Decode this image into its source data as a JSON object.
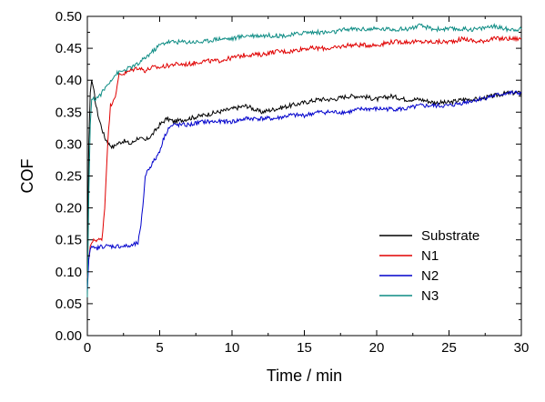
{
  "chart_data": {
    "type": "line",
    "xlabel": "Time / min",
    "ylabel": "COF",
    "xlim": [
      0,
      30
    ],
    "ylim": [
      0,
      0.5
    ],
    "x_ticks": [
      0,
      5,
      10,
      15,
      20,
      25,
      30
    ],
    "y_ticks": [
      0.0,
      0.05,
      0.1,
      0.15,
      0.2,
      0.25,
      0.3,
      0.35,
      0.4,
      0.45,
      0.5
    ],
    "x_tick_labels": [
      "0",
      "5",
      "10",
      "15",
      "20",
      "25",
      "30"
    ],
    "y_tick_labels": [
      "0.00",
      "0.05",
      "0.10",
      "0.15",
      "0.20",
      "0.25",
      "0.30",
      "0.35",
      "0.40",
      "0.45",
      "0.50"
    ],
    "grid": false,
    "legend_position": "lower-right",
    "series": [
      {
        "name": "Substrate",
        "color": "#000000",
        "x": [
          0,
          0.1,
          0.2,
          0.3,
          0.4,
          0.5,
          0.6,
          0.8,
          1.0,
          1.2,
          1.5,
          1.8,
          2.0,
          2.5,
          3.0,
          3.5,
          4.0,
          4.5,
          5.0,
          5.5,
          6.0,
          7.0,
          8.0,
          9.0,
          10.0,
          11.0,
          12.0,
          13.0,
          14.0,
          15.0,
          16.0,
          17.0,
          18.0,
          19.0,
          20.0,
          21.0,
          22.0,
          23.0,
          24.0,
          25.0,
          26.0,
          27.0,
          28.0,
          29.0,
          30.0
        ],
        "y": [
          0.1,
          0.3,
          0.38,
          0.4,
          0.39,
          0.375,
          0.36,
          0.34,
          0.325,
          0.31,
          0.3,
          0.295,
          0.3,
          0.305,
          0.3,
          0.31,
          0.305,
          0.315,
          0.33,
          0.34,
          0.335,
          0.34,
          0.345,
          0.35,
          0.355,
          0.36,
          0.35,
          0.355,
          0.36,
          0.365,
          0.37,
          0.37,
          0.375,
          0.375,
          0.37,
          0.375,
          0.37,
          0.37,
          0.365,
          0.365,
          0.37,
          0.37,
          0.375,
          0.38,
          0.38
        ]
      },
      {
        "name": "N1",
        "color": "#e00000",
        "x": [
          0,
          0.1,
          0.2,
          0.3,
          0.5,
          0.8,
          1.0,
          1.2,
          1.4,
          1.6,
          1.8,
          2.0,
          2.2,
          2.5,
          3.0,
          3.5,
          4.0,
          4.5,
          5.0,
          6.0,
          7.0,
          8.0,
          9.0,
          10.0,
          11.0,
          12.0,
          13.0,
          14.0,
          15.0,
          16.0,
          17.0,
          18.0,
          19.0,
          20.0,
          21.0,
          22.0,
          23.0,
          24.0,
          25.0,
          26.0,
          27.0,
          28.0,
          29.0,
          30.0
        ],
        "y": [
          0.09,
          0.12,
          0.14,
          0.145,
          0.15,
          0.15,
          0.15,
          0.2,
          0.3,
          0.36,
          0.37,
          0.38,
          0.41,
          0.41,
          0.415,
          0.42,
          0.415,
          0.42,
          0.42,
          0.425,
          0.425,
          0.43,
          0.43,
          0.435,
          0.44,
          0.44,
          0.445,
          0.445,
          0.45,
          0.45,
          0.45,
          0.455,
          0.455,
          0.455,
          0.46,
          0.46,
          0.46,
          0.46,
          0.46,
          0.465,
          0.46,
          0.465,
          0.465,
          0.465
        ]
      },
      {
        "name": "N2",
        "color": "#0000cc",
        "x": [
          0,
          0.1,
          0.2,
          0.3,
          0.5,
          1.0,
          1.5,
          2.0,
          2.5,
          3.0,
          3.5,
          3.7,
          3.9,
          4.0,
          4.2,
          4.5,
          4.8,
          5.0,
          5.3,
          5.6,
          6.0,
          7.0,
          8.0,
          9.0,
          10.0,
          11.0,
          12.0,
          13.0,
          14.0,
          15.0,
          16.0,
          17.0,
          18.0,
          19.0,
          20.0,
          21.0,
          22.0,
          23.0,
          24.0,
          25.0,
          26.0,
          27.0,
          28.0,
          29.0,
          30.0
        ],
        "y": [
          0.07,
          0.12,
          0.135,
          0.14,
          0.135,
          0.14,
          0.14,
          0.14,
          0.14,
          0.14,
          0.145,
          0.17,
          0.22,
          0.25,
          0.26,
          0.27,
          0.28,
          0.29,
          0.31,
          0.325,
          0.33,
          0.33,
          0.335,
          0.335,
          0.335,
          0.34,
          0.34,
          0.34,
          0.345,
          0.345,
          0.35,
          0.35,
          0.35,
          0.355,
          0.355,
          0.355,
          0.355,
          0.36,
          0.36,
          0.36,
          0.365,
          0.37,
          0.375,
          0.38,
          0.38
        ]
      },
      {
        "name": "N3",
        "color": "#0d8c84",
        "x": [
          0,
          0.1,
          0.2,
          0.3,
          0.5,
          0.8,
          1.0,
          1.3,
          1.6,
          2.0,
          2.5,
          3.0,
          3.5,
          4.0,
          4.5,
          5.0,
          5.5,
          6.0,
          7.0,
          8.0,
          9.0,
          10.0,
          11.0,
          12.0,
          13.0,
          14.0,
          15.0,
          16.0,
          17.0,
          18.0,
          19.0,
          20.0,
          21.0,
          22.0,
          23.0,
          24.0,
          25.0,
          26.0,
          27.0,
          28.0,
          29.0,
          30.0
        ],
        "y": [
          0.06,
          0.22,
          0.33,
          0.37,
          0.37,
          0.375,
          0.38,
          0.39,
          0.4,
          0.41,
          0.415,
          0.42,
          0.425,
          0.435,
          0.445,
          0.455,
          0.46,
          0.46,
          0.46,
          0.46,
          0.465,
          0.465,
          0.47,
          0.47,
          0.47,
          0.47,
          0.475,
          0.475,
          0.475,
          0.48,
          0.48,
          0.48,
          0.48,
          0.48,
          0.485,
          0.48,
          0.48,
          0.48,
          0.48,
          0.485,
          0.48,
          0.48
        ]
      }
    ]
  }
}
